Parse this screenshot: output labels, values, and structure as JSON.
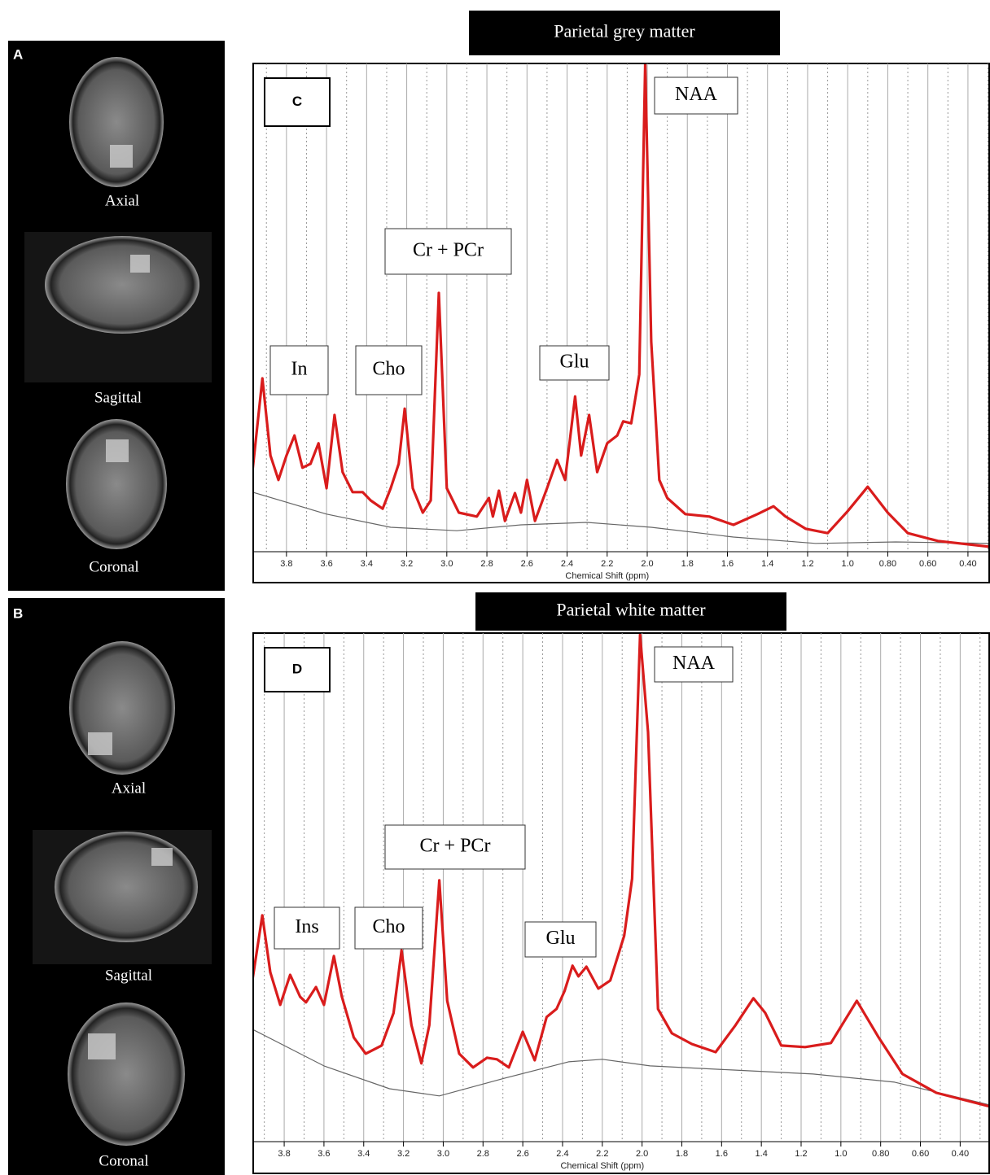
{
  "images": [
    {
      "label": "A",
      "views": [
        "Axial",
        "Sagittal",
        "Coronal"
      ]
    },
    {
      "label": "B",
      "views": [
        "Axial",
        "Sagittal",
        "Coronal"
      ]
    }
  ],
  "chart_data": [
    {
      "type": "line",
      "title": "Parietal grey matter",
      "panel_label": "C",
      "xlabel": "Chemical Shift (ppm)",
      "annotations": [
        "In",
        "Cho",
        "Cr + PCr",
        "Glu",
        "NAA"
      ],
      "xlim": [
        3.97,
        0.29
      ],
      "ylim": [
        0,
        100
      ],
      "xticks": [
        3.8,
        3.6,
        3.4,
        3.2,
        {
          "value": 3,
          "label": "3.0"
        },
        2.8,
        2.6,
        2.4,
        2.2,
        {
          "value": 2,
          "label": "2.0"
        },
        1.8,
        1.6,
        1.4,
        1.2,
        {
          "value": 1,
          "label": "1.0"
        },
        {
          "value": 0.8,
          "label": "0.80"
        },
        {
          "value": 0.6,
          "label": "0.60"
        },
        {
          "value": 0.4,
          "label": "0.40"
        }
      ],
      "grid": true,
      "minor_grid": true,
      "series": [
        {
          "color": "#d91c1c",
          "x": [
            3.97,
            3.92,
            3.88,
            3.84,
            3.8,
            3.76,
            3.72,
            3.68,
            3.64,
            3.6,
            3.56,
            3.52,
            3.47,
            3.42,
            3.38,
            3.32,
            3.28,
            3.24,
            3.21,
            3.17,
            3.12,
            3.08,
            3.04,
            3.0,
            2.94,
            2.85,
            2.79,
            2.77,
            2.74,
            2.71,
            2.66,
            2.63,
            2.6,
            2.56,
            2.5,
            2.45,
            2.41,
            2.36,
            2.33,
            2.29,
            2.25,
            2.2,
            2.15,
            2.12,
            2.08,
            2.04,
            2.01,
            1.98,
            1.94,
            1.9,
            1.81,
            1.69,
            1.57,
            1.45,
            1.37,
            1.31,
            1.21,
            1.1,
            1.0,
            0.9,
            0.8,
            0.7,
            0.55,
            0.29
          ],
          "values": [
            16.3,
            35.5,
            19.7,
            14.7,
            19.7,
            23.8,
            17.2,
            18.0,
            22.2,
            13.0,
            28.0,
            16.3,
            12.2,
            12.2,
            10.5,
            8.8,
            13.0,
            18.0,
            29.3,
            13.0,
            8.0,
            10.5,
            53.0,
            13.0,
            8.0,
            7.2,
            11.0,
            7.2,
            12.5,
            6.3,
            12.0,
            8.0,
            14.7,
            6.3,
            13.0,
            18.8,
            14.7,
            31.8,
            19.7,
            28.0,
            16.3,
            22.2,
            23.8,
            26.7,
            26.3,
            36.3,
            100,
            43.0,
            14.7,
            11.0,
            7.7,
            7.2,
            5.5,
            7.7,
            9.3,
            7.2,
            4.7,
            3.8,
            8.3,
            13.3,
            8.0,
            3.8,
            2.2,
            1.0
          ]
        },
        {
          "color": "#666666",
          "x": [
            3.97,
            3.6,
            3.28,
            2.95,
            2.63,
            2.3,
            1.98,
            1.57,
            1.16,
            0.76,
            0.29
          ],
          "values": [
            12.2,
            7.7,
            5.0,
            4.3,
            5.5,
            6.0,
            5.0,
            3.0,
            1.7,
            2.0,
            1.7
          ]
        }
      ]
    },
    {
      "type": "line",
      "title": "Parietal white matter",
      "panel_label": "D",
      "xlabel": "Chemical Shift (ppm)",
      "annotations": [
        "Ins",
        "Cho",
        "Cr + PCr",
        "Glu",
        "NAA"
      ],
      "xlim": [
        3.96,
        0.25
      ],
      "ylim": [
        0,
        100
      ],
      "xticks": [
        3.8,
        3.6,
        3.4,
        3.2,
        {
          "value": 3,
          "label": "3.0"
        },
        2.8,
        2.6,
        2.4,
        2.2,
        {
          "value": 2,
          "label": "2.0"
        },
        1.8,
        1.6,
        1.4,
        1.2,
        {
          "value": 1,
          "label": "1.0"
        },
        {
          "value": 0.8,
          "label": "0.80"
        },
        {
          "value": 0.6,
          "label": "0.60"
        },
        {
          "value": 0.4,
          "label": "0.40"
        }
      ],
      "grid": true,
      "minor_grid": true,
      "series": [
        {
          "color": "#d91c1c",
          "x": [
            3.96,
            3.91,
            3.87,
            3.82,
            3.77,
            3.72,
            3.69,
            3.64,
            3.6,
            3.55,
            3.51,
            3.45,
            3.39,
            3.31,
            3.25,
            3.21,
            3.16,
            3.11,
            3.07,
            3.02,
            2.98,
            2.92,
            2.85,
            2.78,
            2.73,
            2.67,
            2.6,
            2.54,
            2.48,
            2.43,
            2.39,
            2.35,
            2.32,
            2.28,
            2.22,
            2.16,
            2.09,
            2.05,
            2.01,
            1.97,
            1.92,
            1.85,
            1.75,
            1.63,
            1.53,
            1.44,
            1.38,
            1.3,
            1.18,
            1.05,
            0.92,
            0.81,
            0.69,
            0.52,
            0.25
          ],
          "values": [
            31.7,
            44.5,
            33.3,
            26.9,
            32.8,
            28.5,
            27.4,
            30.4,
            26.9,
            36.5,
            28.5,
            20.5,
            17.3,
            18.9,
            25.3,
            37.6,
            22.9,
            15.4,
            22.9,
            51.4,
            27.7,
            17.3,
            14.6,
            16.5,
            16.2,
            14.6,
            21.6,
            16.0,
            24.5,
            26.1,
            29.6,
            34.6,
            32.5,
            34.4,
            30.1,
            31.7,
            40.5,
            51.7,
            99.7,
            80.5,
            26.1,
            21.3,
            19.2,
            17.6,
            22.9,
            28.2,
            25.3,
            18.9,
            18.6,
            19.4,
            27.7,
            20.5,
            13.3,
            9.6,
            6.9
          ]
        },
        {
          "color": "#666666",
          "x": [
            3.96,
            3.6,
            3.27,
            3.02,
            2.69,
            2.37,
            2.2,
            1.96,
            1.55,
            1.14,
            0.73,
            0.25
          ],
          "values": [
            22.1,
            14.9,
            10.4,
            9.0,
            12.5,
            15.7,
            16.2,
            14.9,
            14.1,
            13.3,
            11.7,
            7.2
          ]
        }
      ]
    }
  ]
}
